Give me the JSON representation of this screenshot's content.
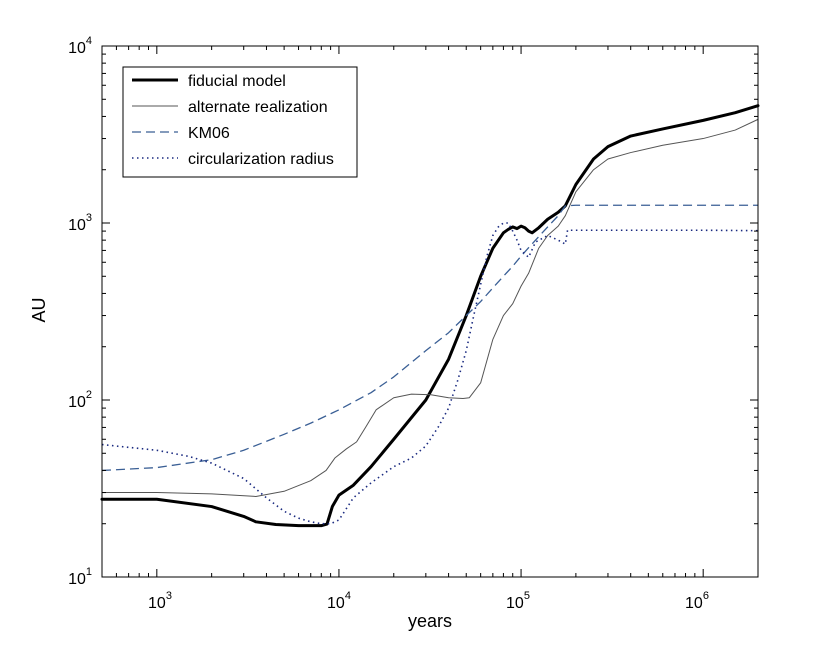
{
  "chart_data": {
    "type": "line",
    "xlabel": "years",
    "ylabel": "AU",
    "xscale": "log",
    "yscale": "log",
    "xlim": [
      500,
      2000000
    ],
    "ylim": [
      10,
      10000
    ],
    "grid": false,
    "legend_position": "top-left",
    "x_ticks": [
      {
        "base": "10",
        "exp": "3",
        "value": 1000
      },
      {
        "base": "10",
        "exp": "4",
        "value": 10000
      },
      {
        "base": "10",
        "exp": "5",
        "value": 100000
      },
      {
        "base": "10",
        "exp": "6",
        "value": 1000000
      }
    ],
    "y_ticks": [
      {
        "base": "10",
        "exp": "1",
        "value": 10
      },
      {
        "base": "10",
        "exp": "2",
        "value": 100
      },
      {
        "base": "10",
        "exp": "3",
        "value": 1000
      },
      {
        "base": "10",
        "exp": "4",
        "value": 10000
      }
    ],
    "series": [
      {
        "name": "fiducial model",
        "style": "thick-solid",
        "color": "#000000",
        "points": [
          [
            500,
            27.5
          ],
          [
            1000,
            27.5
          ],
          [
            2000,
            25
          ],
          [
            3000,
            22
          ],
          [
            3500,
            20.5
          ],
          [
            4500,
            19.8
          ],
          [
            6000,
            19.5
          ],
          [
            8000,
            19.5
          ],
          [
            8600,
            19.9
          ],
          [
            9200,
            25
          ],
          [
            10000,
            29
          ],
          [
            12000,
            33
          ],
          [
            15000,
            42
          ],
          [
            20000,
            60
          ],
          [
            30000,
            100
          ],
          [
            40000,
            170
          ],
          [
            50000,
            300
          ],
          [
            60000,
            500
          ],
          [
            70000,
            720
          ],
          [
            80000,
            880
          ],
          [
            85000,
            920
          ],
          [
            90000,
            950
          ],
          [
            95000,
            930
          ],
          [
            100000,
            960
          ],
          [
            105000,
            940
          ],
          [
            110000,
            900
          ],
          [
            115000,
            880
          ],
          [
            125000,
            940
          ],
          [
            140000,
            1050
          ],
          [
            160000,
            1150
          ],
          [
            175000,
            1250
          ],
          [
            200000,
            1650
          ],
          [
            250000,
            2300
          ],
          [
            300000,
            2700
          ],
          [
            400000,
            3100
          ],
          [
            600000,
            3400
          ],
          [
            1000000,
            3800
          ],
          [
            1500000,
            4200
          ],
          [
            2000000,
            4600
          ]
        ]
      },
      {
        "name": "alternate realization",
        "style": "thin-solid",
        "color": "#555555",
        "points": [
          [
            500,
            30
          ],
          [
            1000,
            30
          ],
          [
            2000,
            29.5
          ],
          [
            3500,
            28.5
          ],
          [
            5000,
            30.5
          ],
          [
            7000,
            35
          ],
          [
            8500,
            40
          ],
          [
            9500,
            47
          ],
          [
            11000,
            53
          ],
          [
            12500,
            58
          ],
          [
            14000,
            70
          ],
          [
            16000,
            88
          ],
          [
            20000,
            103
          ],
          [
            25000,
            108
          ],
          [
            32000,
            107
          ],
          [
            40000,
            103
          ],
          [
            48000,
            102
          ],
          [
            52000,
            103
          ],
          [
            60000,
            125
          ],
          [
            70000,
            220
          ],
          [
            80000,
            300
          ],
          [
            90000,
            350
          ],
          [
            100000,
            440
          ],
          [
            110000,
            520
          ],
          [
            125000,
            720
          ],
          [
            140000,
            850
          ],
          [
            160000,
            960
          ],
          [
            175000,
            1100
          ],
          [
            200000,
            1500
          ],
          [
            250000,
            2000
          ],
          [
            300000,
            2300
          ],
          [
            400000,
            2500
          ],
          [
            600000,
            2750
          ],
          [
            1000000,
            3000
          ],
          [
            1500000,
            3350
          ],
          [
            2000000,
            3850
          ]
        ]
      },
      {
        "name": "KM06",
        "style": "dashed",
        "color": "#3a5f95",
        "points": [
          [
            500,
            40
          ],
          [
            1000,
            41.5
          ],
          [
            2000,
            46
          ],
          [
            3000,
            52
          ],
          [
            5000,
            64
          ],
          [
            7000,
            74
          ],
          [
            10000,
            88
          ],
          [
            15000,
            110
          ],
          [
            20000,
            135
          ],
          [
            30000,
            190
          ],
          [
            40000,
            240
          ],
          [
            50000,
            300
          ],
          [
            60000,
            360
          ],
          [
            70000,
            430
          ],
          [
            80000,
            500
          ],
          [
            90000,
            570
          ],
          [
            100000,
            650
          ],
          [
            120000,
            800
          ],
          [
            140000,
            950
          ],
          [
            160000,
            1100
          ],
          [
            175000,
            1250
          ],
          [
            200000,
            1260
          ],
          [
            500000,
            1260
          ],
          [
            1000000,
            1260
          ],
          [
            2000000,
            1260
          ]
        ]
      },
      {
        "name": "circularization radius",
        "style": "dotted",
        "color": "#1a2a80",
        "points": [
          [
            500,
            56
          ],
          [
            1000,
            52
          ],
          [
            1500,
            48
          ],
          [
            2000,
            44
          ],
          [
            3000,
            36
          ],
          [
            4000,
            28
          ],
          [
            5000,
            23.5
          ],
          [
            6000,
            21.5
          ],
          [
            7000,
            20.5
          ],
          [
            8000,
            20
          ],
          [
            9000,
            20
          ],
          [
            10000,
            21
          ],
          [
            12000,
            28
          ],
          [
            15000,
            34
          ],
          [
            20000,
            42
          ],
          [
            25000,
            47
          ],
          [
            30000,
            55
          ],
          [
            35000,
            70
          ],
          [
            40000,
            90
          ],
          [
            45000,
            130
          ],
          [
            50000,
            190
          ],
          [
            55000,
            300
          ],
          [
            60000,
            450
          ],
          [
            65000,
            650
          ],
          [
            70000,
            850
          ],
          [
            75000,
            950
          ],
          [
            80000,
            1000
          ],
          [
            85000,
            1000
          ],
          [
            90000,
            900
          ],
          [
            95000,
            800
          ],
          [
            100000,
            700
          ],
          [
            110000,
            640
          ],
          [
            120000,
            780
          ],
          [
            140000,
            850
          ],
          [
            160000,
            800
          ],
          [
            175000,
            760
          ],
          [
            180000,
            910
          ],
          [
            500000,
            910
          ],
          [
            1000000,
            910
          ],
          [
            2000000,
            905
          ]
        ]
      }
    ]
  }
}
